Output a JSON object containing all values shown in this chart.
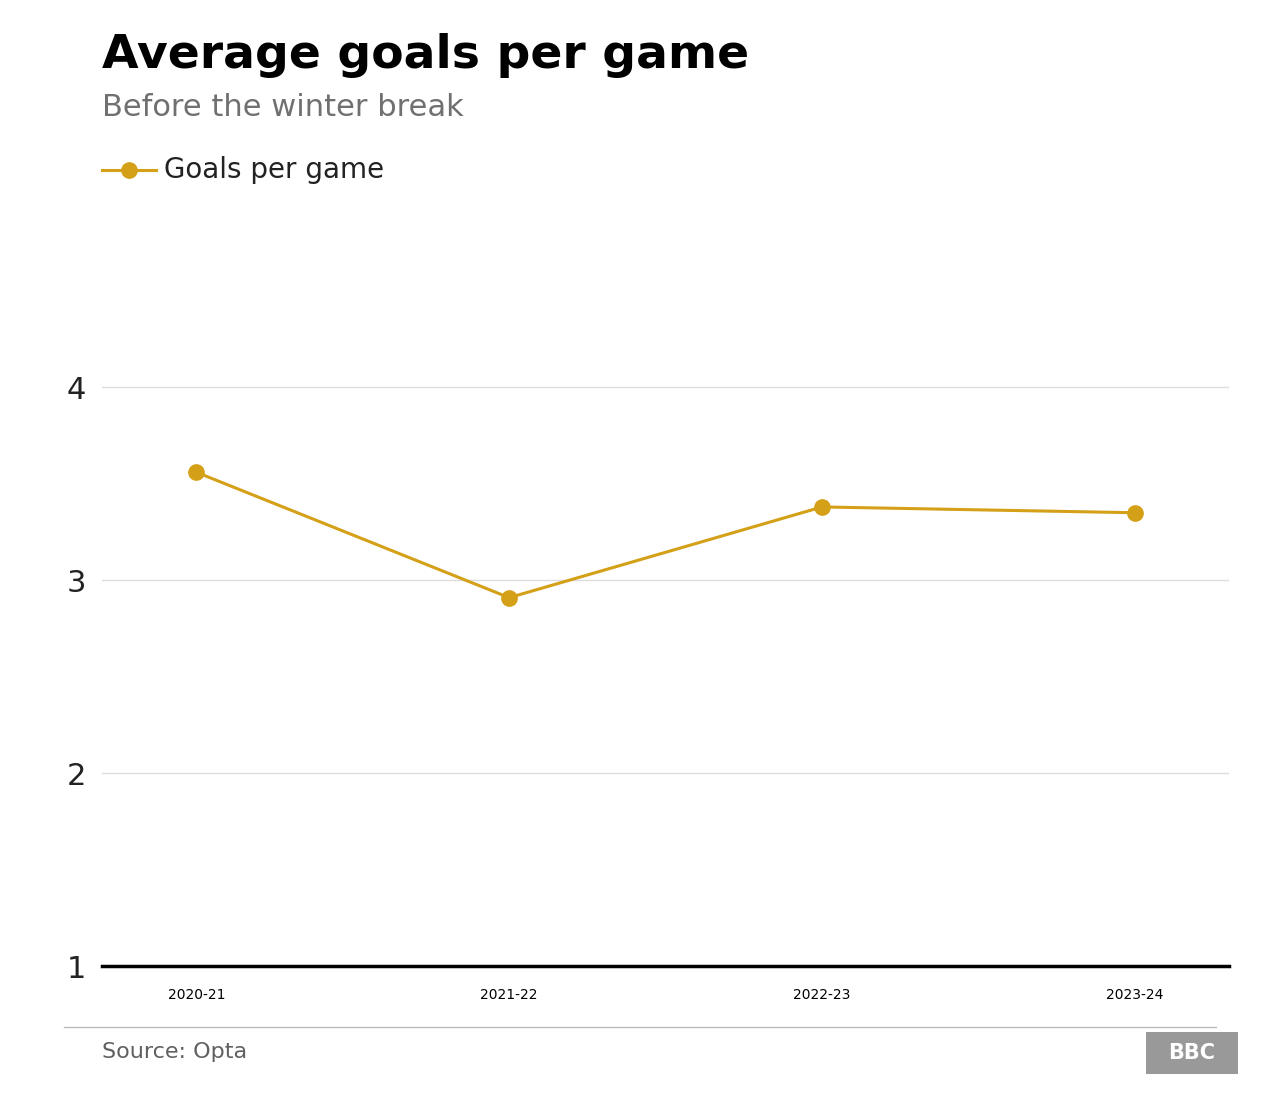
{
  "title": "Average goals per game",
  "subtitle": "Before the winter break",
  "legend_label": "Goals per game",
  "source": "Source: Opta",
  "x_labels": [
    "2020-21",
    "2021-22",
    "2022-23",
    "2023-24"
  ],
  "x_values": [
    0,
    1,
    2,
    3
  ],
  "y_values": [
    3.56,
    2.91,
    3.38,
    3.35
  ],
  "line_color": "#D4A017",
  "marker_color": "#D4A017",
  "ylim": [
    1,
    4.3
  ],
  "yticks": [
    1,
    2,
    3,
    4
  ],
  "background_color": "#ffffff",
  "title_color": "#000000",
  "subtitle_color": "#707070",
  "tick_label_color": "#222222",
  "source_color": "#606060",
  "grid_color": "#dddddd",
  "bottom_line_color": "#000000",
  "title_fontsize": 34,
  "subtitle_fontsize": 22,
  "legend_fontsize": 20,
  "tick_fontsize": 22,
  "source_fontsize": 16,
  "marker_size": 11,
  "line_width": 2.2
}
